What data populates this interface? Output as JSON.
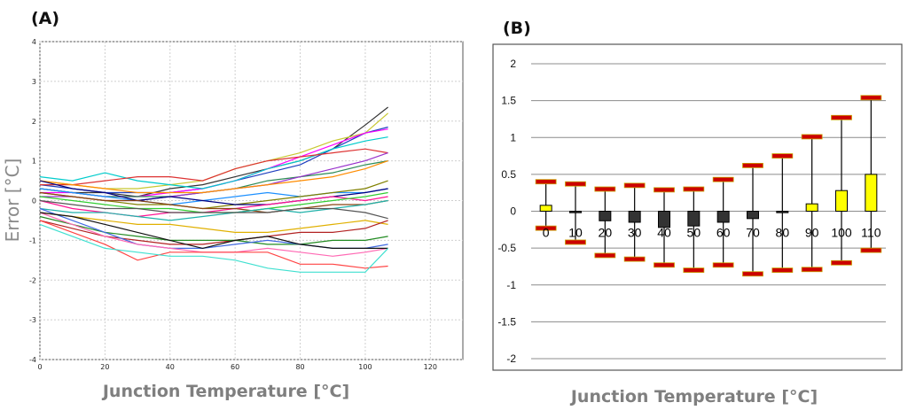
{
  "chart_data": [
    {
      "panel_label": "(A)",
      "type": "line",
      "xlabel": "Junction Temperature [°C]",
      "ylabel": "Error [°C]",
      "xlim": [
        0,
        130
      ],
      "ylim": [
        -4,
        4
      ],
      "xticks": [
        0,
        20,
        40,
        60,
        80,
        100,
        120
      ],
      "yticks": [
        -4,
        -3,
        -2,
        -1,
        0,
        1,
        2,
        3,
        4
      ],
      "grid": true,
      "x": [
        0,
        10,
        20,
        30,
        40,
        50,
        60,
        70,
        80,
        90,
        100,
        107
      ],
      "series": [
        {
          "color": "#333333",
          "values": [
            0.3,
            0.2,
            0.2,
            0.1,
            0.3,
            0.4,
            0.6,
            0.8,
            1.0,
            1.3,
            1.9,
            2.35
          ]
        },
        {
          "color": "#c8c832",
          "values": [
            0.5,
            0.4,
            0.3,
            0.3,
            0.4,
            0.5,
            0.8,
            1.0,
            1.2,
            1.5,
            1.7,
            2.2
          ]
        },
        {
          "color": "#1f3fbf",
          "values": [
            0.4,
            0.3,
            0.2,
            0.2,
            0.2,
            0.3,
            0.5,
            0.7,
            0.9,
            1.3,
            1.7,
            1.85
          ]
        },
        {
          "color": "#ff00ff",
          "values": [
            0.2,
            0.2,
            0.1,
            0.1,
            0.2,
            0.3,
            0.5,
            0.8,
            1.1,
            1.4,
            1.7,
            1.8
          ]
        },
        {
          "color": "#00cccc",
          "values": [
            0.6,
            0.5,
            0.7,
            0.5,
            0.4,
            0.3,
            0.5,
            0.8,
            1.0,
            1.3,
            1.5,
            1.6
          ]
        },
        {
          "color": "#dd3333",
          "values": [
            0.4,
            0.4,
            0.5,
            0.6,
            0.6,
            0.5,
            0.8,
            1.0,
            1.1,
            1.2,
            1.3,
            1.2
          ]
        },
        {
          "color": "#2e8b57",
          "values": [
            0.3,
            0.2,
            0.1,
            0.1,
            0.1,
            0.2,
            0.3,
            0.5,
            0.6,
            0.7,
            0.9,
            1.0
          ]
        },
        {
          "color": "#9932cc",
          "values": [
            0.1,
            0.1,
            0.0,
            0.0,
            0.1,
            0.2,
            0.3,
            0.4,
            0.6,
            0.8,
            1.0,
            1.2
          ]
        },
        {
          "color": "#ff8c00",
          "values": [
            0.5,
            0.4,
            0.3,
            0.2,
            0.2,
            0.2,
            0.3,
            0.4,
            0.5,
            0.6,
            0.8,
            1.0
          ]
        },
        {
          "color": "#1e90ff",
          "values": [
            0.3,
            0.2,
            0.1,
            0.0,
            -0.1,
            0.0,
            0.1,
            0.2,
            0.1,
            0.2,
            0.2,
            0.3
          ]
        },
        {
          "color": "#808000",
          "values": [
            0.2,
            0.1,
            0.0,
            -0.1,
            -0.1,
            -0.2,
            -0.1,
            0.0,
            0.1,
            0.2,
            0.3,
            0.5
          ]
        },
        {
          "color": "#000080",
          "values": [
            0.5,
            0.3,
            0.2,
            0.0,
            0.1,
            0.0,
            -0.1,
            -0.1,
            0.0,
            0.1,
            0.2,
            0.3
          ]
        },
        {
          "color": "#ff1493",
          "values": [
            0.0,
            -0.2,
            -0.3,
            -0.4,
            -0.3,
            -0.3,
            -0.2,
            -0.1,
            0.0,
            0.1,
            0.0,
            0.1
          ]
        },
        {
          "color": "#32cd32",
          "values": [
            0.1,
            0.0,
            -0.1,
            -0.2,
            -0.2,
            -0.3,
            -0.3,
            -0.2,
            -0.1,
            0.0,
            0.1,
            0.2
          ]
        },
        {
          "color": "#8b4513",
          "values": [
            0.2,
            0.1,
            0.0,
            0.0,
            -0.1,
            -0.2,
            -0.2,
            -0.3,
            -0.2,
            -0.1,
            -0.1,
            0.0
          ]
        },
        {
          "color": "#20b2aa",
          "values": [
            -0.2,
            -0.3,
            -0.3,
            -0.4,
            -0.5,
            -0.4,
            -0.3,
            -0.2,
            -0.3,
            -0.2,
            -0.1,
            0.0
          ]
        },
        {
          "color": "#555555",
          "values": [
            0.0,
            -0.1,
            -0.2,
            -0.2,
            -0.3,
            -0.3,
            -0.3,
            -0.3,
            -0.2,
            -0.2,
            -0.3,
            -0.45
          ]
        },
        {
          "color": "#e0b000",
          "values": [
            -0.3,
            -0.4,
            -0.5,
            -0.6,
            -0.6,
            -0.7,
            -0.8,
            -0.8,
            -0.7,
            -0.6,
            -0.5,
            -0.6
          ]
        },
        {
          "color": "#b22222",
          "values": [
            -0.5,
            -0.7,
            -0.9,
            -1.0,
            -1.1,
            -1.1,
            -1.0,
            -0.9,
            -0.8,
            -0.8,
            -0.7,
            -0.5
          ]
        },
        {
          "color": "#228b22",
          "values": [
            -0.4,
            -0.6,
            -0.8,
            -0.9,
            -1.0,
            -1.0,
            -1.0,
            -1.1,
            -1.1,
            -1.0,
            -1.0,
            -0.9
          ]
        },
        {
          "color": "#4169e1",
          "values": [
            -0.2,
            -0.5,
            -0.8,
            -1.1,
            -1.2,
            -1.2,
            -1.1,
            -1.0,
            -1.1,
            -1.2,
            -1.2,
            -1.1
          ]
        },
        {
          "color": "#ff69b4",
          "values": [
            -0.3,
            -0.6,
            -0.9,
            -1.1,
            -1.2,
            -1.3,
            -1.3,
            -1.2,
            -1.3,
            -1.4,
            -1.3,
            -1.2
          ]
        },
        {
          "color": "#111111",
          "values": [
            -0.3,
            -0.4,
            -0.6,
            -0.8,
            -1.0,
            -1.2,
            -1.0,
            -0.9,
            -1.1,
            -1.2,
            -1.2,
            -1.2
          ]
        },
        {
          "color": "#ff4444",
          "values": [
            -0.5,
            -0.8,
            -1.1,
            -1.5,
            -1.3,
            -1.3,
            -1.3,
            -1.3,
            -1.6,
            -1.6,
            -1.7,
            -1.65
          ]
        },
        {
          "color": "#40e0d0",
          "values": [
            -0.6,
            -0.9,
            -1.2,
            -1.3,
            -1.4,
            -1.4,
            -1.5,
            -1.7,
            -1.8,
            -1.8,
            -1.8,
            -1.2
          ]
        }
      ]
    },
    {
      "panel_label": "(B)",
      "type": "box",
      "xlabel": "Junction Temperature [°C]",
      "ylim": [
        -2,
        2
      ],
      "yticks": [
        -2,
        -1.5,
        -1,
        -0.5,
        0,
        0.5,
        1,
        1.5,
        2
      ],
      "ytick_labels": [
        "-2",
        "-1.5",
        "-1",
        "-0.5",
        "0",
        "0.5",
        "1",
        "1.5",
        "2"
      ],
      "grid": true,
      "categories": [
        "0",
        "10",
        "20",
        "30",
        "40",
        "50",
        "60",
        "70",
        "80",
        "90",
        "100",
        "110"
      ],
      "median": [
        0.08,
        -0.02,
        -0.13,
        -0.15,
        -0.22,
        -0.2,
        -0.15,
        -0.1,
        -0.02,
        0.1,
        0.28,
        0.5
      ],
      "max": [
        0.4,
        0.37,
        0.3,
        0.35,
        0.29,
        0.3,
        0.43,
        0.62,
        0.75,
        1.01,
        1.27,
        1.54
      ],
      "min": [
        -0.23,
        -0.42,
        -0.6,
        -0.65,
        -0.73,
        -0.8,
        -0.73,
        -0.85,
        -0.8,
        -0.79,
        -0.7,
        -0.53
      ],
      "colors": {
        "positive": "#ffff00",
        "negative": "#333333",
        "whisker_cap": "#cc0000",
        "cap_border": "#c8a000"
      }
    }
  ]
}
